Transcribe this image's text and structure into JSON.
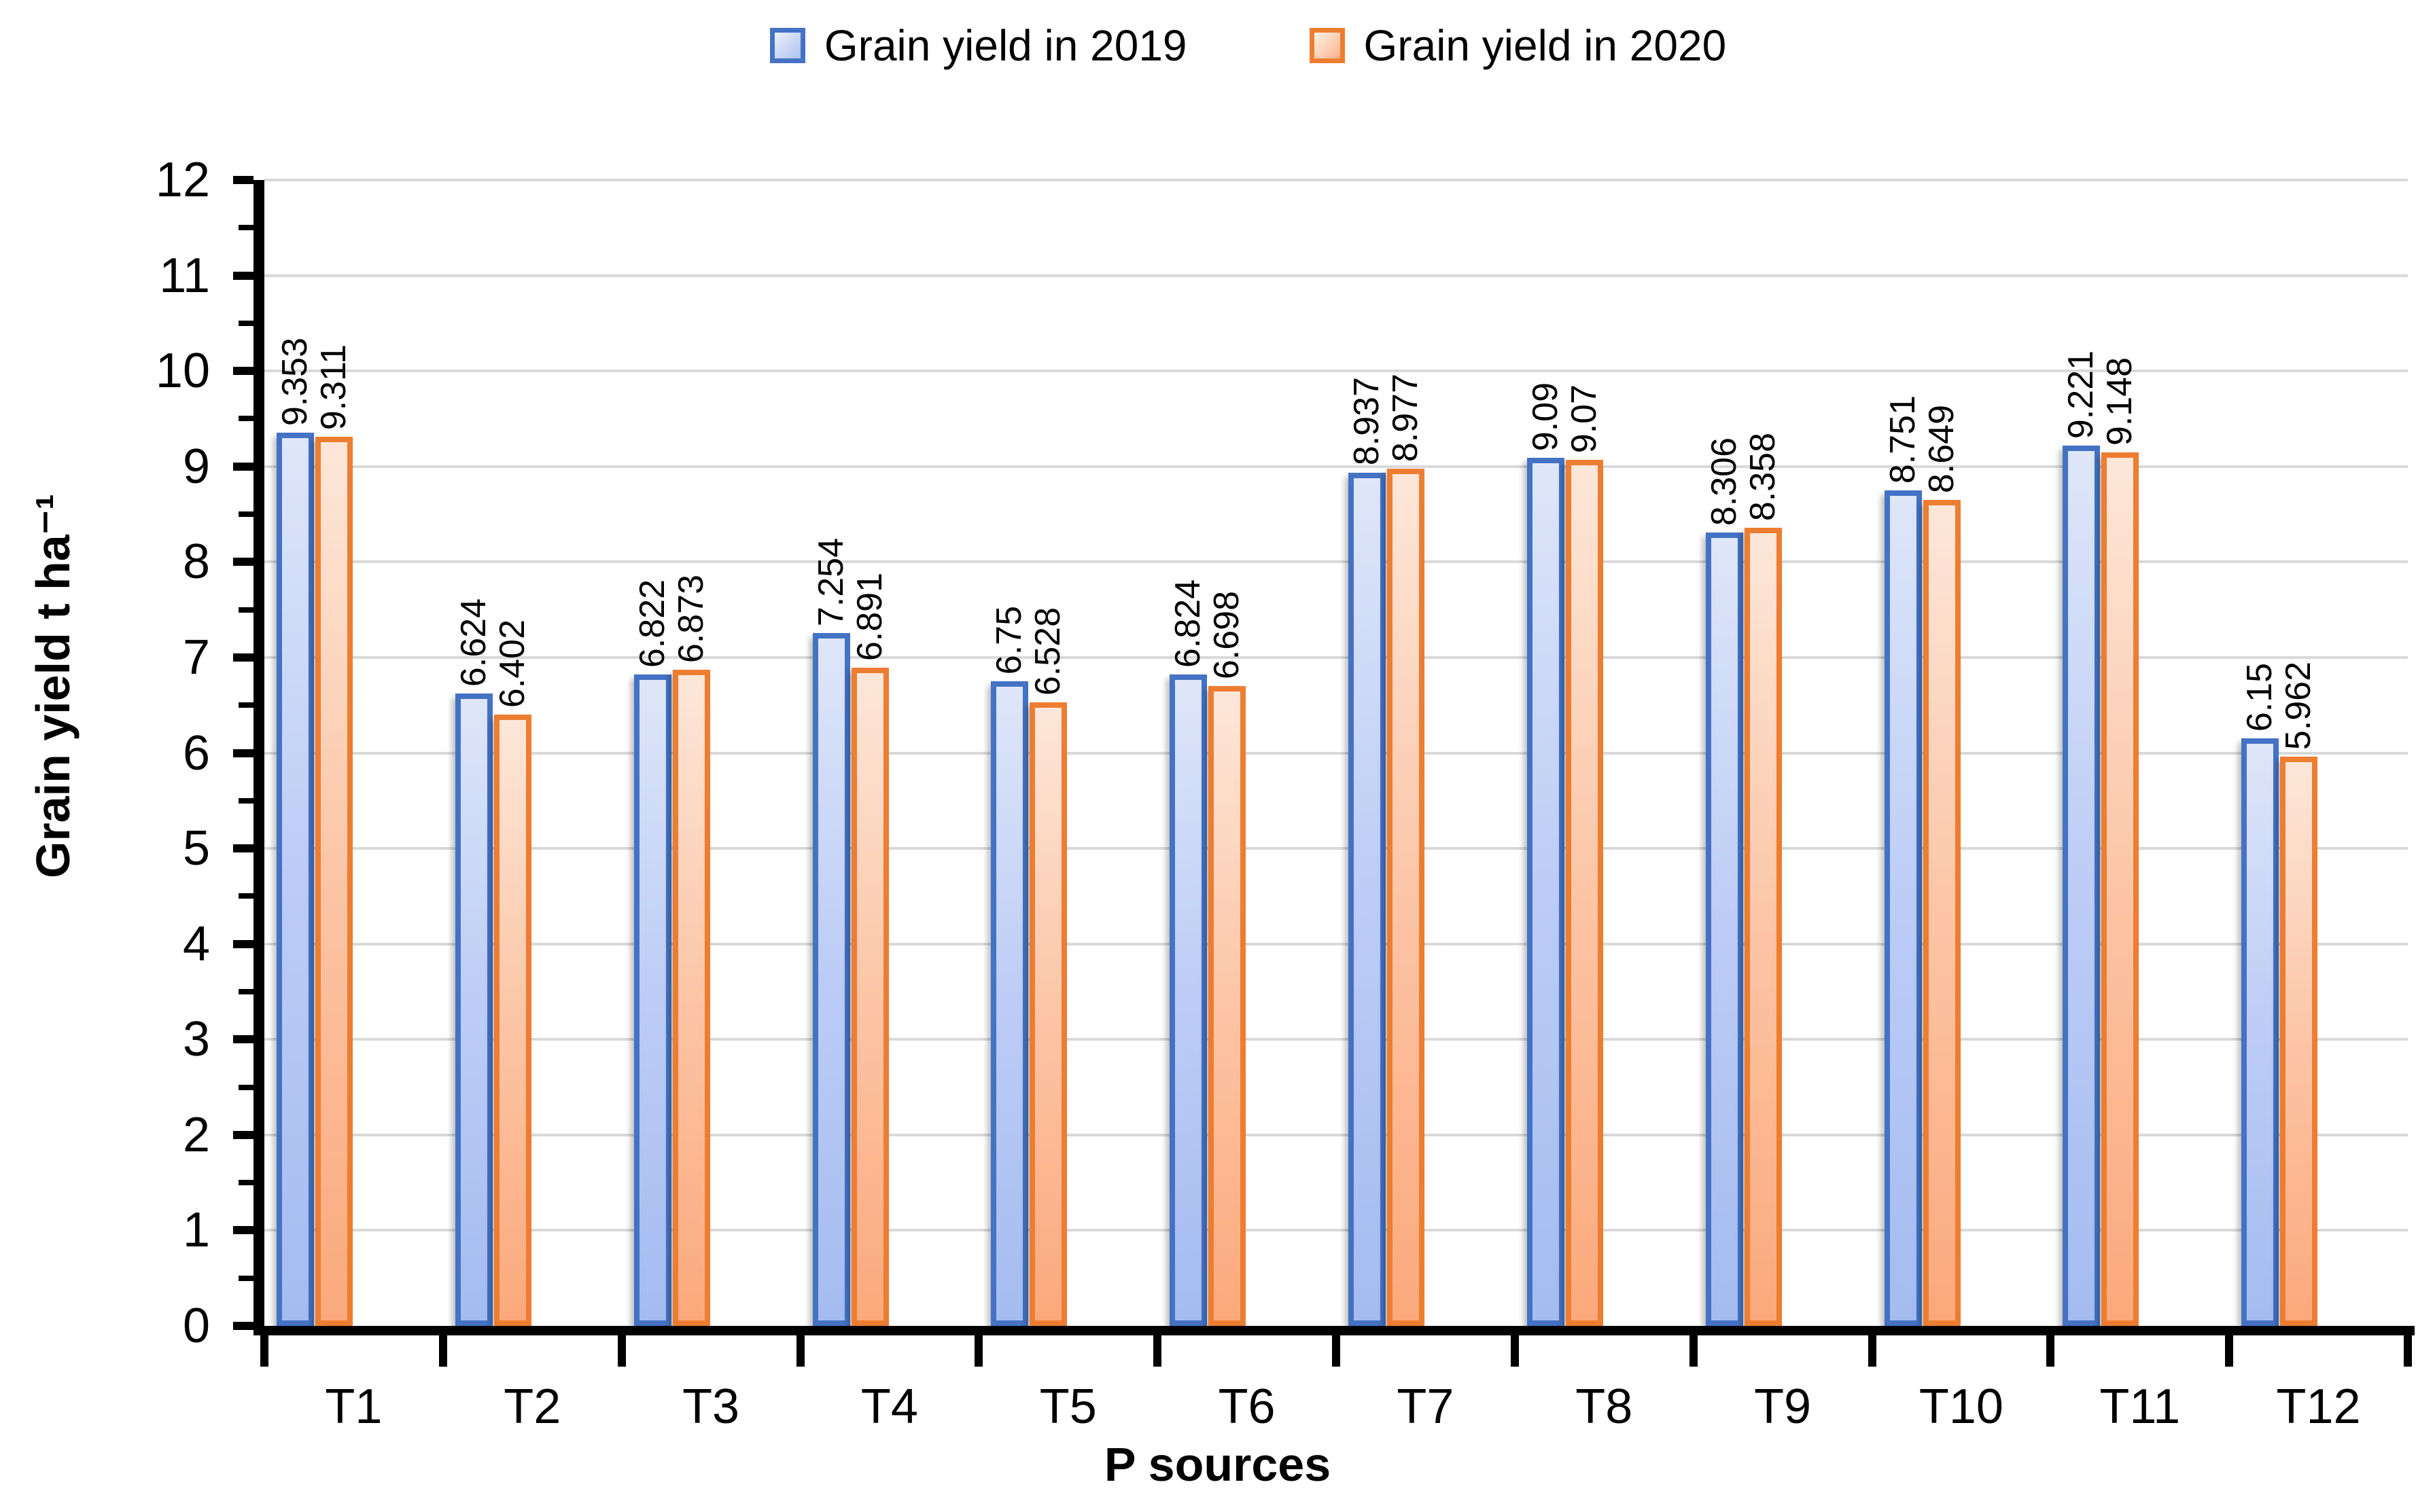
{
  "legend": {
    "items": [
      {
        "label": "Grain yield in 2019",
        "swatch": "blue-gradient-box"
      },
      {
        "label": "Grain yield in 2020",
        "swatch": "orange-gradient-box"
      }
    ]
  },
  "chart_data": {
    "type": "bar",
    "categories": [
      "T1",
      "T2",
      "T3",
      "T4",
      "T5",
      "T6",
      "T7",
      "T8",
      "T9",
      "T10",
      "T11",
      "T12"
    ],
    "series": [
      {
        "name": "Grain yield in 2019",
        "color": "#4472C4",
        "values": [
          9.353,
          6.624,
          6.822,
          7.254,
          6.75,
          6.824,
          8.937,
          9.09,
          8.306,
          8.751,
          9.221,
          6.15
        ]
      },
      {
        "name": "Grain yield in 2020",
        "color": "#ED7D31",
        "values": [
          9.311,
          6.402,
          6.873,
          6.891,
          6.528,
          6.698,
          8.977,
          9.07,
          8.358,
          8.649,
          9.148,
          5.962
        ]
      }
    ],
    "xlabel": "P sources",
    "ylabel": "Grain yield t ha⁻¹",
    "ylim": [
      0,
      12
    ],
    "ytick_step": 1,
    "yminor_step": 0.5,
    "y_ticks": [
      0,
      1,
      2,
      3,
      4,
      5,
      6,
      7,
      8,
      9,
      10,
      11,
      12
    ],
    "grid": true,
    "gridline_color": "#D9D9D9",
    "axis_color": "#000000",
    "legend_position": "top",
    "data_labels": true,
    "data_label_rotation": 90
  }
}
